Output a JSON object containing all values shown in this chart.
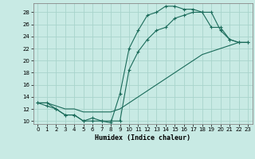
{
  "xlabel": "Humidex (Indice chaleur)",
  "background_color": "#c8eae4",
  "grid_color": "#a8d4cc",
  "line_color": "#1a6b5a",
  "xlim": [
    -0.5,
    23.5
  ],
  "ylim": [
    9.5,
    29.5
  ],
  "xticks": [
    0,
    1,
    2,
    3,
    4,
    5,
    6,
    7,
    8,
    9,
    10,
    11,
    12,
    13,
    14,
    15,
    16,
    17,
    18,
    19,
    20,
    21,
    22,
    23
  ],
  "yticks": [
    10,
    12,
    14,
    16,
    18,
    20,
    22,
    24,
    26,
    28
  ],
  "line1_x": [
    0,
    1,
    2,
    3,
    4,
    5,
    6,
    7,
    8,
    9,
    10,
    11,
    12,
    13,
    14,
    15,
    16,
    17,
    18,
    19,
    20,
    21,
    22,
    23
  ],
  "line1_y": [
    13,
    13,
    12,
    11,
    11,
    10,
    10,
    10,
    9.7,
    14.5,
    22,
    25,
    27.5,
    28,
    29,
    29,
    28.5,
    28.5,
    28,
    28,
    25,
    23.5,
    23,
    23
  ],
  "line2_x": [
    0,
    1,
    2,
    3,
    4,
    5,
    6,
    7,
    8,
    9,
    10,
    11,
    12,
    13,
    14,
    15,
    16,
    17,
    18,
    19,
    20,
    21,
    22,
    23
  ],
  "line2_y": [
    13,
    13,
    12.5,
    12,
    12,
    11.5,
    11.5,
    11.5,
    11.5,
    12,
    13,
    14,
    15,
    16,
    17,
    18,
    19,
    20,
    21,
    21.5,
    22,
    22.5,
    23,
    23
  ],
  "line3_x": [
    0,
    1,
    2,
    3,
    4,
    5,
    6,
    7,
    8,
    9,
    10,
    11,
    12,
    13,
    14,
    15,
    16,
    17,
    18,
    19,
    20,
    21,
    22,
    23
  ],
  "line3_y": [
    13,
    12.5,
    12,
    11,
    11,
    10,
    10.5,
    10,
    10,
    10,
    18.5,
    21.5,
    23.5,
    25,
    25.5,
    27,
    27.5,
    28,
    28,
    25.5,
    25.5,
    23.5,
    23,
    23
  ]
}
